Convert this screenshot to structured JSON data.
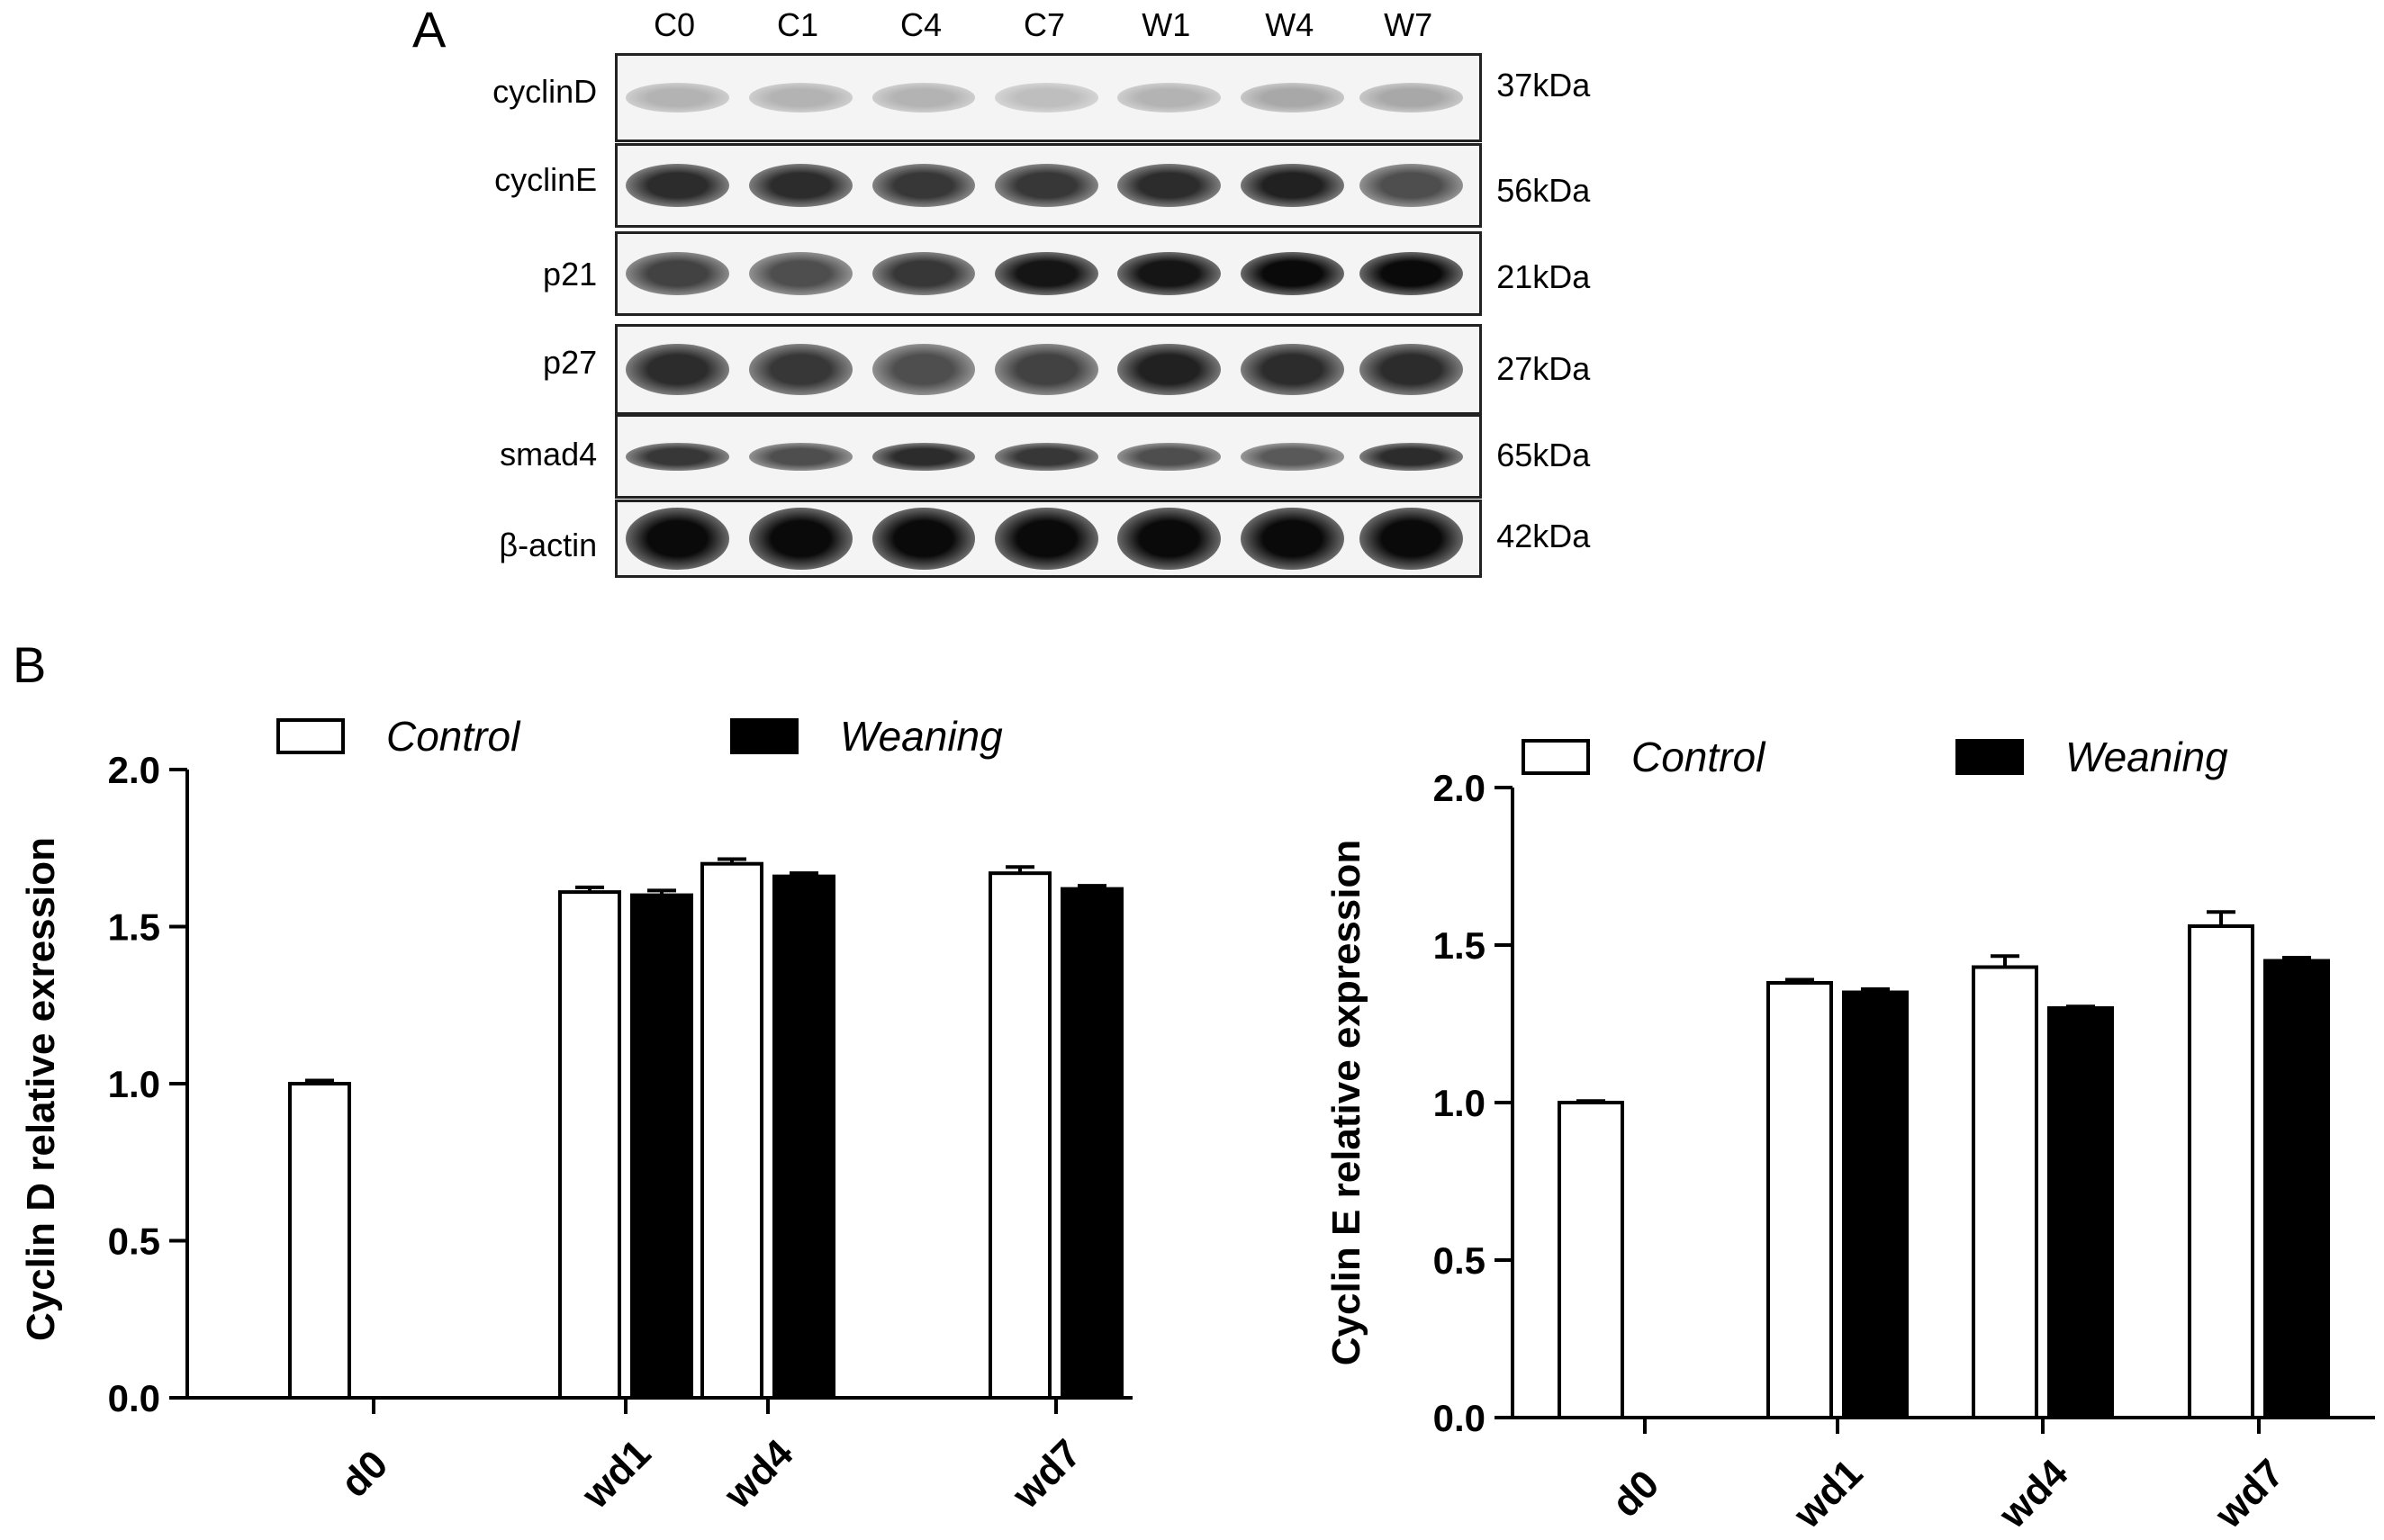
{
  "panel_a": {
    "letter": "A",
    "lanes": [
      "C0",
      "C1",
      "C4",
      "C7",
      "W1",
      "W4",
      "W7"
    ],
    "blots": [
      {
        "protein": "cyclinD",
        "kda": "37kDa",
        "intensity": [
          0.25,
          0.25,
          0.25,
          0.2,
          0.25,
          0.3,
          0.3
        ],
        "thickness": 0.35
      },
      {
        "protein": "cyclinE",
        "kda": "56kDa",
        "intensity": [
          0.85,
          0.85,
          0.8,
          0.8,
          0.85,
          0.9,
          0.7
        ],
        "thickness": 0.55
      },
      {
        "protein": "p21",
        "kda": "21kDa",
        "intensity": [
          0.75,
          0.7,
          0.8,
          0.95,
          0.95,
          1.0,
          1.0
        ],
        "thickness": 0.55
      },
      {
        "protein": "p27",
        "kda": "27kDa",
        "intensity": [
          0.85,
          0.8,
          0.7,
          0.75,
          0.9,
          0.85,
          0.85
        ],
        "thickness": 0.6
      },
      {
        "protein": "smad4",
        "kda": "65kDa",
        "intensity": [
          0.8,
          0.7,
          0.85,
          0.8,
          0.7,
          0.65,
          0.85
        ],
        "thickness": 0.35
      },
      {
        "protein": "β-actin",
        "kda": "42kDa",
        "intensity": [
          1.0,
          1.0,
          1.0,
          1.0,
          1.0,
          1.0,
          1.0
        ],
        "thickness": 0.85
      }
    ]
  },
  "panel_b": {
    "letter": "B"
  },
  "chart_data": [
    {
      "type": "bar",
      "title": "",
      "xlabel": "",
      "ylabel": "Cyclin D relative exression",
      "ylim": [
        0,
        2.0
      ],
      "yticks": [
        "0.0",
        "0.5",
        "1.0",
        "1.5",
        "2.0"
      ],
      "categories": [
        "d0",
        "wd1",
        "wd4",
        "wd7"
      ],
      "legend": [
        "Control",
        "Weaning"
      ],
      "legend_position": "top",
      "series": [
        {
          "name": "Control",
          "color": "#ffffff",
          "values": [
            1.0,
            1.61,
            1.7,
            1.67
          ],
          "errors": [
            0.01,
            0.015,
            0.015,
            0.02
          ]
        },
        {
          "name": "Weaning",
          "color": "#000000",
          "values": [
            null,
            1.6,
            1.66,
            1.62
          ],
          "errors": [
            null,
            0.015,
            0.01,
            0.01
          ]
        }
      ]
    },
    {
      "type": "bar",
      "title": "",
      "xlabel": "",
      "ylabel": "Cyclin E relative expression",
      "ylim": [
        0,
        2.0
      ],
      "yticks": [
        "0.0",
        "0.5",
        "1.0",
        "1.5",
        "2.0"
      ],
      "categories": [
        "d0",
        "wd1",
        "wd4",
        "wd7"
      ],
      "legend": [
        "Control",
        "Weaning"
      ],
      "legend_position": "top",
      "series": [
        {
          "name": "Control",
          "color": "#ffffff",
          "values": [
            1.0,
            1.38,
            1.43,
            1.56
          ],
          "errors": [
            0.005,
            0.01,
            0.035,
            0.045
          ]
        },
        {
          "name": "Weaning",
          "color": "#000000",
          "values": [
            null,
            1.35,
            1.3,
            1.45
          ],
          "errors": [
            null,
            0.01,
            0.005,
            0.01
          ]
        }
      ]
    }
  ]
}
